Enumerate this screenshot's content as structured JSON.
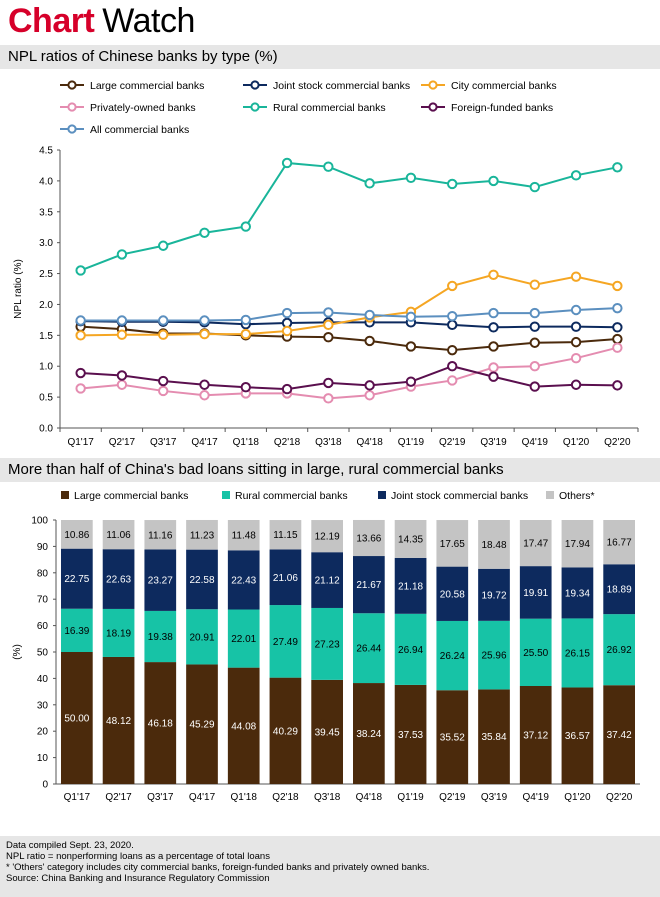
{
  "header": {
    "brand_part1": "Chart",
    "brand_part2": "Watch"
  },
  "chart1_title": "NPL ratios of Chinese banks by type (%)",
  "chart2_title": "More than half of China's bad loans sitting in large, rural commercial banks",
  "notes": [
    "Data compiled Sept. 23, 2020.",
    "NPL ratio = nonperforming loans as a percentage of total loans",
    "* 'Others' category includes city commercial banks, foreign-funded banks and privately owned banks.",
    "Source: China Banking and Insurance Regulatory Commission"
  ],
  "chart_data": [
    {
      "type": "line",
      "title": "NPL ratios of Chinese banks by type (%)",
      "ylabel": "NPL ratio (%)",
      "xlabel": "",
      "ylim": [
        0,
        4.5
      ],
      "yticks": [
        "0.0",
        "0.5",
        "1.0",
        "1.5",
        "2.0",
        "2.5",
        "3.0",
        "3.5",
        "4.0",
        "4.5"
      ],
      "grid": false,
      "legend": "top",
      "categories": [
        "Q1'17",
        "Q2'17",
        "Q3'17",
        "Q4'17",
        "Q1'18",
        "Q2'18",
        "Q3'18",
        "Q4'18",
        "Q1'19",
        "Q2'19",
        "Q3'19",
        "Q4'19",
        "Q1'20",
        "Q2'20"
      ],
      "series": [
        {
          "name": "Large commercial banks",
          "color": "#4b2a0c",
          "values": [
            1.64,
            1.6,
            1.53,
            1.53,
            1.5,
            1.48,
            1.47,
            1.41,
            1.32,
            1.26,
            1.32,
            1.38,
            1.39,
            1.44
          ]
        },
        {
          "name": "Joint stock commercial banks",
          "color": "#0d2a5e",
          "values": [
            1.73,
            1.72,
            1.72,
            1.71,
            1.68,
            1.7,
            1.71,
            1.71,
            1.71,
            1.67,
            1.63,
            1.64,
            1.64,
            1.63
          ]
        },
        {
          "name": "City commercial banks",
          "color": "#f5a623",
          "values": [
            1.5,
            1.51,
            1.51,
            1.52,
            1.52,
            1.57,
            1.67,
            1.79,
            1.88,
            2.3,
            2.48,
            2.32,
            2.45,
            2.3
          ]
        },
        {
          "name": "Privately-owned banks",
          "color": "#e48cb0",
          "values": [
            0.64,
            0.7,
            0.6,
            0.53,
            0.56,
            0.56,
            0.48,
            0.53,
            0.67,
            0.77,
            0.98,
            1.0,
            1.13,
            1.3
          ]
        },
        {
          "name": "Rural commercial banks",
          "color": "#19b59a",
          "values": [
            2.55,
            2.81,
            2.95,
            3.16,
            3.26,
            4.29,
            4.23,
            3.96,
            4.05,
            3.95,
            4.0,
            3.9,
            4.09,
            4.22
          ]
        },
        {
          "name": "Foreign-funded banks",
          "color": "#5a0f4e",
          "values": [
            0.89,
            0.85,
            0.76,
            0.7,
            0.66,
            0.63,
            0.73,
            0.69,
            0.75,
            1.0,
            0.83,
            0.67,
            0.7,
            0.69
          ]
        },
        {
          "name": "All commercial banks",
          "color": "#5b8fbf",
          "values": [
            1.74,
            1.74,
            1.74,
            1.74,
            1.75,
            1.86,
            1.87,
            1.83,
            1.8,
            1.81,
            1.86,
            1.86,
            1.91,
            1.94
          ]
        }
      ]
    },
    {
      "type": "bar",
      "stacked": true,
      "title": "More than half of China's bad loans sitting in large, rural commercial banks",
      "ylabel": "(%)",
      "xlabel": "",
      "ylim": [
        0,
        100
      ],
      "yticks": [
        "0",
        "10",
        "20",
        "30",
        "40",
        "50",
        "60",
        "70",
        "80",
        "90",
        "100"
      ],
      "grid": false,
      "legend": "top",
      "categories": [
        "Q1'17",
        "Q2'17",
        "Q3'17",
        "Q4'17",
        "Q1'18",
        "Q2'18",
        "Q3'18",
        "Q4'18",
        "Q1'19",
        "Q2'19",
        "Q3'19",
        "Q4'19",
        "Q1'20",
        "Q2'20"
      ],
      "series": [
        {
          "name": "Large commercial banks",
          "color": "#4b2a0c",
          "label_color": "#ffffff",
          "values": [
            50.0,
            48.12,
            46.18,
            45.29,
            44.08,
            40.29,
            39.45,
            38.24,
            37.53,
            35.52,
            35.84,
            37.12,
            36.57,
            37.42
          ]
        },
        {
          "name": "Rural commercial banks",
          "color": "#17c3a6",
          "label_color": "#000000",
          "values": [
            16.39,
            18.19,
            19.38,
            20.91,
            22.01,
            27.49,
            27.23,
            26.44,
            26.94,
            26.24,
            25.96,
            25.5,
            26.15,
            26.92
          ]
        },
        {
          "name": "Joint stock commercial banks",
          "color": "#0d2a5e",
          "label_color": "#ffffff",
          "values": [
            22.75,
            22.63,
            23.27,
            22.58,
            22.43,
            21.06,
            21.12,
            21.67,
            21.18,
            20.58,
            19.72,
            19.91,
            19.34,
            18.89
          ]
        },
        {
          "name": "Others*",
          "color": "#c4c4c4",
          "label_color": "#000000",
          "values": [
            10.86,
            11.06,
            11.16,
            11.23,
            11.48,
            11.15,
            12.19,
            13.66,
            14.35,
            17.65,
            18.48,
            17.47,
            17.94,
            16.77
          ]
        }
      ]
    }
  ]
}
